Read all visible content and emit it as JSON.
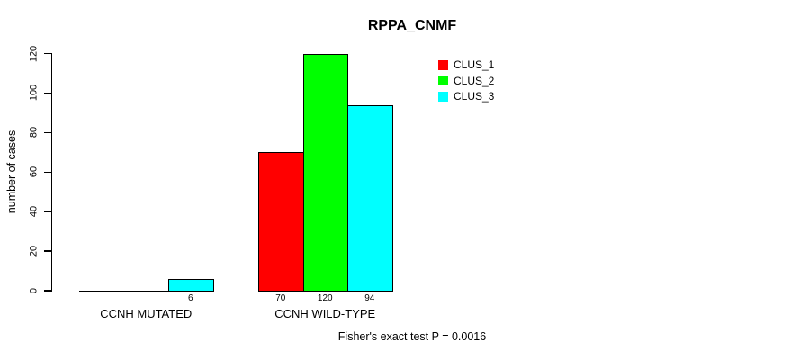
{
  "chart_data": {
    "type": "bar",
    "title": "RPPA_CNMF",
    "ylabel": "number of cases",
    "xlabel": "",
    "ylim": [
      0,
      120
    ],
    "yticks": [
      0,
      20,
      40,
      60,
      80,
      100,
      120
    ],
    "grid": false,
    "legend_position": "top-center-inside",
    "categories": [
      "CCNH MUTATED",
      "CCNH WILD-TYPE"
    ],
    "series": [
      {
        "name": "CLUS_1",
        "color": "#ff0000",
        "values": [
          0,
          70
        ]
      },
      {
        "name": "CLUS_2",
        "color": "#00ff00",
        "values": [
          0,
          120
        ]
      },
      {
        "name": "CLUS_3",
        "color": "#00ffff",
        "values": [
          6,
          94
        ]
      }
    ],
    "bar_value_labels_shown": [
      "6",
      "70",
      "120",
      "94"
    ],
    "show_zero_value_labels": false,
    "footnote": "Fisher's exact test P = 0.0016"
  },
  "style": {
    "background": "#ffffff",
    "axis_color": "#000000",
    "bar_border_color": "#000000",
    "text_color": "#000000"
  }
}
